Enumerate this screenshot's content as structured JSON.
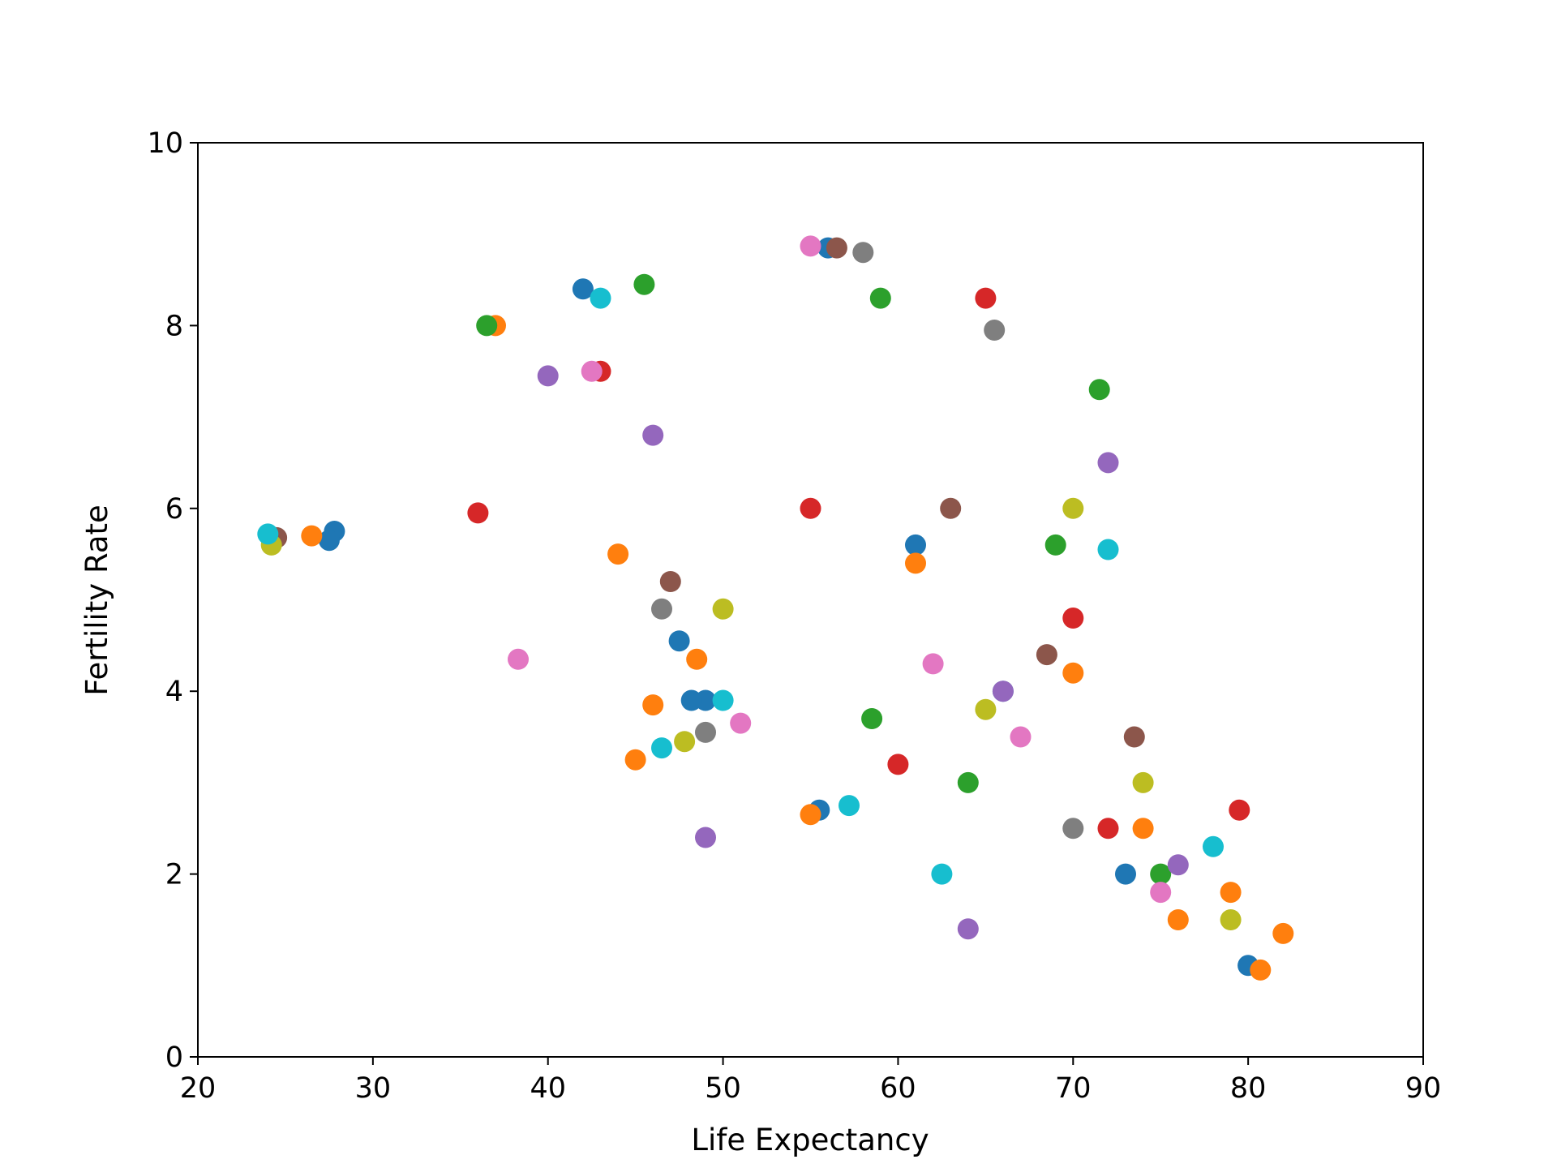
{
  "chart_data": {
    "type": "scatter",
    "title": "",
    "xlabel": "Life Expectancy",
    "ylabel": "Fertility Rate",
    "xlim": [
      20,
      90
    ],
    "ylim": [
      0,
      10
    ],
    "xticks": [
      "20",
      "30",
      "40",
      "50",
      "60",
      "70",
      "80",
      "90"
    ],
    "yticks": [
      "0",
      "2",
      "4",
      "6",
      "8",
      "10"
    ],
    "grid": false,
    "legend": "none",
    "palette": [
      "#1f77b4",
      "#ff7f0e",
      "#2ca02c",
      "#d62728",
      "#9467bd",
      "#8c564b",
      "#e377c2",
      "#7f7f7f",
      "#bcbd22",
      "#17becf"
    ],
    "series": [
      {
        "color": "#1f77b4",
        "x": [
          27.8,
          27.5,
          42.0,
          49.0,
          56.0,
          55.5,
          47.5,
          48.2,
          61.0,
          66.0,
          73.0,
          80.0
        ],
        "y": [
          5.75,
          5.65,
          8.4,
          3.9,
          8.85,
          2.7,
          4.55,
          3.9,
          5.6,
          4.0,
          2.0,
          1.0
        ]
      },
      {
        "color": "#ff7f0e",
        "x": [
          26.5,
          37.0,
          44.0,
          55.0,
          46.0,
          48.5,
          45.0,
          61.0,
          70.0,
          74.0,
          76.0,
          80.7,
          82.0,
          79.0
        ],
        "y": [
          5.7,
          8.0,
          5.5,
          2.65,
          3.85,
          4.35,
          3.25,
          5.4,
          4.2,
          2.5,
          1.5,
          0.95,
          1.35,
          1.8
        ]
      },
      {
        "color": "#2ca02c",
        "x": [
          36.5,
          45.5,
          59.0,
          71.5,
          58.5,
          64.0,
          69.0,
          75.0
        ],
        "y": [
          8.0,
          8.45,
          8.3,
          7.3,
          3.7,
          3.0,
          5.6,
          2.0
        ]
      },
      {
        "color": "#d62728",
        "x": [
          36.0,
          43.0,
          55.0,
          65.0,
          70.0,
          60.0,
          72.0,
          79.5
        ],
        "y": [
          5.95,
          7.5,
          6.0,
          8.3,
          4.8,
          3.2,
          2.5,
          2.7
        ]
      },
      {
        "color": "#9467bd",
        "x": [
          49.0,
          40.0,
          46.0,
          64.0,
          66.0,
          72.0,
          76.0
        ],
        "y": [
          2.4,
          7.45,
          6.8,
          1.4,
          4.0,
          6.5,
          2.1
        ]
      },
      {
        "color": "#8c564b",
        "x": [
          24.5,
          47.0,
          56.5,
          63.0,
          68.5,
          73.5
        ],
        "y": [
          5.68,
          5.2,
          8.85,
          6.0,
          4.4,
          3.5
        ]
      },
      {
        "color": "#e377c2",
        "x": [
          38.3,
          51.0,
          55.0,
          42.5,
          62.0,
          67.0,
          75.0
        ],
        "y": [
          4.35,
          3.65,
          8.87,
          7.5,
          4.3,
          3.5,
          1.8
        ]
      },
      {
        "color": "#7f7f7f",
        "x": [
          46.5,
          49.0,
          65.5,
          58.0,
          70.0
        ],
        "y": [
          4.9,
          3.55,
          7.95,
          8.8,
          2.5
        ]
      },
      {
        "color": "#bcbd22",
        "x": [
          24.2,
          47.8,
          50.0,
          65.0,
          70.0,
          74.0,
          79.0
        ],
        "y": [
          5.6,
          3.45,
          4.9,
          3.8,
          6.0,
          3.0,
          1.5
        ]
      },
      {
        "color": "#17becf",
        "x": [
          24.0,
          43.0,
          46.5,
          57.2,
          62.5,
          50.0,
          72.0,
          78.0
        ],
        "y": [
          5.72,
          8.3,
          3.38,
          2.75,
          2.0,
          3.9,
          5.55,
          2.3
        ]
      }
    ]
  }
}
